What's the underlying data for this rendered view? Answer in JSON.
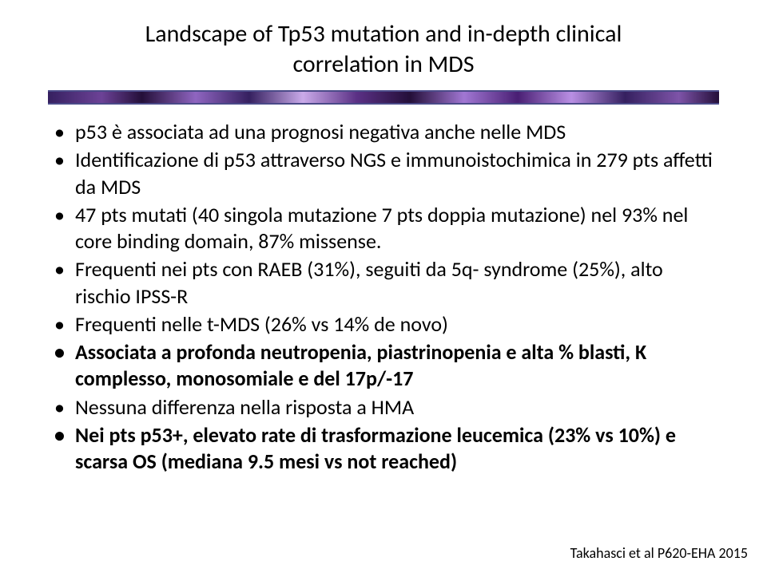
{
  "title": {
    "line1": "Landscape of Tp53 mutation and in-depth clinical",
    "line2": "correlation in MDS"
  },
  "bullets": [
    {
      "text": "p53 è associata ad una prognosi negativa anche nelle MDS",
      "bold": false
    },
    {
      "text": "Identificazione di p53 attraverso NGS e immunoistochimica in 279 pts affetti da MDS",
      "bold": false
    },
    {
      "text": "47 pts mutati (40 singola mutazione 7 pts doppia mutazione) nel 93% nel core binding domain, 87% missense.",
      "bold": false
    },
    {
      "text": "Frequenti nei pts con RAEB (31%), seguiti da 5q- syndrome (25%), alto rischio IPSS-R",
      "bold": false
    },
    {
      "text": "Frequenti nelle t-MDS (26% vs 14% de novo)",
      "bold": false
    },
    {
      "text": "Associata a profonda neutropenia, piastrinopenia e alta % blasti, K complesso, monosomiale e del 17p/-17",
      "bold": true
    },
    {
      "text": "Nessuna differenza nella risposta a HMA",
      "bold": false
    },
    {
      "text": "Nei pts p53+, elevato rate di trasformazione leucemica (23% vs 10%) e scarsa OS (mediana 9.5 mesi vs not reached)",
      "bold": true
    }
  ],
  "citation": "Takahasci et al P620-EHA 2015"
}
